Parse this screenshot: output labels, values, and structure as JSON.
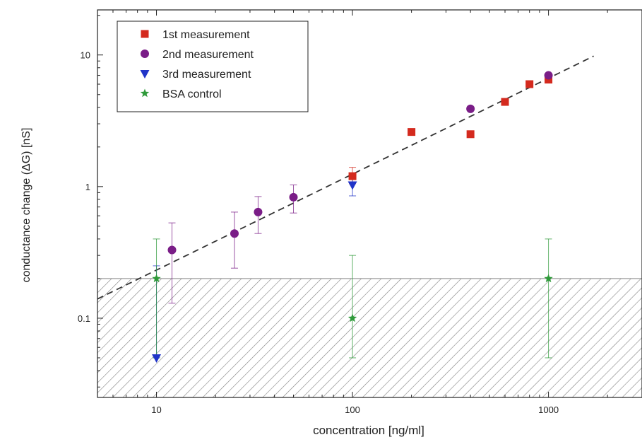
{
  "chart_data": {
    "type": "scatter",
    "xlabel": "concentration [ng/ml]",
    "ylabel": "conductance change (ΔG) [nS]",
    "xscale": "log",
    "yscale": "log",
    "xlim": [
      5,
      3000
    ],
    "ylim": [
      0.025,
      22
    ],
    "x_ticks": [
      10,
      100,
      1000
    ],
    "x_tick_labels": [
      "10",
      "100",
      "1000"
    ],
    "y_ticks": [
      0.1,
      1,
      10
    ],
    "y_tick_labels": [
      "0.1",
      "1",
      "10"
    ],
    "grid": false,
    "legend_position": "top-left",
    "shaded_region": {
      "below_y": 0.2,
      "pattern": "diagonal-hatch"
    },
    "fit_line": {
      "style": "dashed",
      "color": "#333333",
      "points": [
        [
          5,
          0.14
        ],
        [
          1700,
          9.8
        ]
      ]
    },
    "series": [
      {
        "name": "1st measurement",
        "marker": "square",
        "color": "#d42a1e",
        "points": [
          {
            "x": 100,
            "y": 1.2,
            "ylow": 1.05,
            "yhigh": 1.4
          },
          {
            "x": 200,
            "y": 2.6
          },
          {
            "x": 400,
            "y": 2.5
          },
          {
            "x": 600,
            "y": 4.4
          },
          {
            "x": 800,
            "y": 6.0
          },
          {
            "x": 1000,
            "y": 6.5
          }
        ]
      },
      {
        "name": "2nd measurement",
        "marker": "circle",
        "color": "#7a1d87",
        "points": [
          {
            "x": 12,
            "y": 0.33,
            "ylow": 0.13,
            "yhigh": 0.53
          },
          {
            "x": 25,
            "y": 0.44,
            "ylow": 0.24,
            "yhigh": 0.64
          },
          {
            "x": 33,
            "y": 0.64,
            "ylow": 0.44,
            "yhigh": 0.84
          },
          {
            "x": 50,
            "y": 0.83,
            "ylow": 0.63,
            "yhigh": 1.03
          },
          {
            "x": 400,
            "y": 3.9
          },
          {
            "x": 1000,
            "y": 7.0
          }
        ]
      },
      {
        "name": "3rd measurement",
        "marker": "triangle-down",
        "color": "#2034c8",
        "points": [
          {
            "x": 10,
            "y": 0.05,
            "ylow": 0.05,
            "yhigh": 0.25
          },
          {
            "x": 100,
            "y": 1.03,
            "ylow": 0.85,
            "yhigh": 1.25
          }
        ]
      },
      {
        "name": "BSA control",
        "marker": "star",
        "color": "#2f9a3a",
        "points": [
          {
            "x": 10,
            "y": 0.2,
            "ylow": 0.05,
            "yhigh": 0.4
          },
          {
            "x": 100,
            "y": 0.1,
            "ylow": 0.05,
            "yhigh": 0.3
          },
          {
            "x": 1000,
            "y": 0.2,
            "ylow": 0.05,
            "yhigh": 0.4
          }
        ]
      }
    ]
  }
}
